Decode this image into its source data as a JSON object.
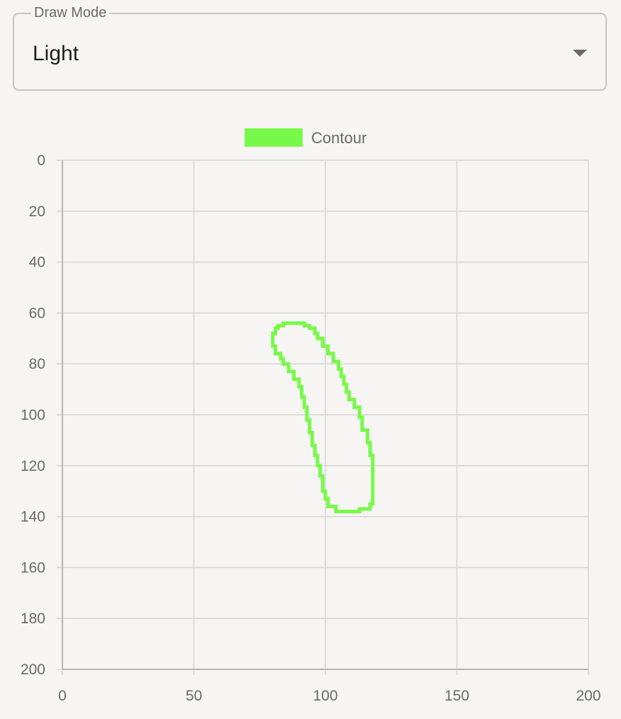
{
  "draw_mode": {
    "label": "Draw Mode",
    "value": "Light"
  },
  "colors": {
    "background": "#f6f5f3",
    "contour": "#78f94a",
    "grid": "#d5d5d5",
    "axis": "#b5b5b5"
  },
  "chart_data": {
    "type": "line",
    "legend": [
      "Contour"
    ],
    "legend_position": "top-center",
    "grid": true,
    "xlim": [
      0,
      200
    ],
    "ylim": [
      0,
      200
    ],
    "y_inverted": true,
    "xticks": [
      0,
      50,
      100,
      150,
      200
    ],
    "yticks": [
      0,
      20,
      40,
      60,
      80,
      100,
      120,
      140,
      160,
      180,
      200
    ],
    "series": [
      {
        "name": "Contour",
        "x": [
          85,
          88,
          90,
          92,
          94,
          96,
          97,
          99,
          101,
          103,
          105,
          106,
          107,
          108,
          109,
          111,
          113,
          114,
          116,
          117,
          118,
          118,
          117,
          113,
          111,
          107,
          104,
          101,
          100,
          99,
          98,
          97,
          96,
          95,
          94,
          93,
          92,
          91,
          90,
          88,
          86,
          84,
          83,
          81,
          80,
          80,
          80,
          81,
          82,
          84
        ],
        "y": [
          64,
          64,
          64,
          65,
          66,
          68,
          70,
          73,
          76,
          79,
          82,
          85,
          88,
          91,
          94,
          97,
          101,
          106,
          111,
          116,
          121,
          135,
          137,
          138,
          138,
          138,
          136,
          133,
          130,
          124,
          120,
          116,
          112,
          107,
          102,
          97,
          93,
          89,
          86,
          83,
          80,
          78,
          76,
          73,
          70,
          71,
          68,
          66,
          65,
          64
        ]
      }
    ]
  }
}
